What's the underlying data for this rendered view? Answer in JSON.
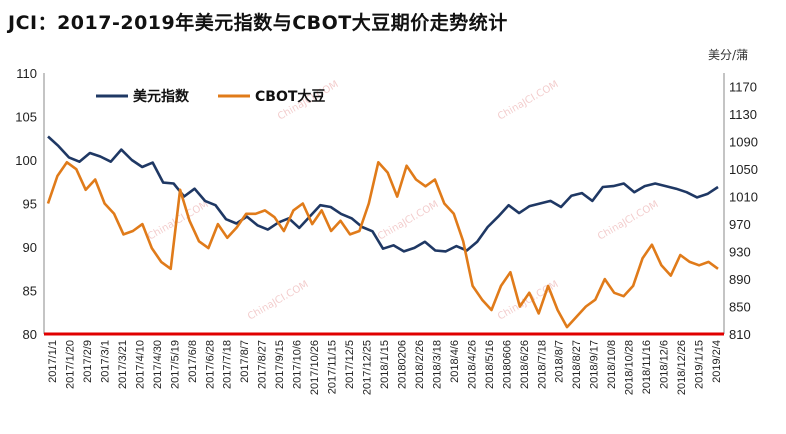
{
  "title": "JCI：2017-2019年美元指数与CBOT大豆期价走势统计",
  "right_unit": "美分/蒲",
  "chart_data": {
    "type": "line",
    "title": "JCI：2017-2019年美元指数与CBOT大豆期价走势统计",
    "left_axis": {
      "range": [
        80,
        110
      ],
      "ticks": [
        80,
        85,
        90,
        95,
        100,
        105,
        110
      ]
    },
    "right_axis": {
      "range": [
        810,
        1190
      ],
      "ticks": [
        810,
        850,
        890,
        930,
        970,
        1010,
        1050,
        1090,
        1130,
        1170
      ],
      "label": "美分/蒲"
    },
    "x_tick_labels": [
      "2017/1/1",
      "2017/1/20",
      "2017/2/9",
      "2017/3/1",
      "2017/3/21",
      "2017/4/10",
      "2017/4/30",
      "2017/5/19",
      "2017/6/8",
      "2017/6/28",
      "2017/7/18",
      "2017/8/7",
      "2017/8/27",
      "2017/9/15",
      "2017/10/6",
      "2017/10/26",
      "2017/11/15",
      "2017/12/5",
      "2017/12/25",
      "2018/1/15",
      "20180206",
      "2018/2/26",
      "2018/3/18",
      "2018/4/6",
      "2018/4/26",
      "2018/5/16",
      "20180606",
      "2018/6/26",
      "2018/7/18",
      "2018/8/7",
      "2018/8/27",
      "2018/9/17",
      "2018/10/8",
      "2018/10/28",
      "2018/11/16",
      "2018/12/6",
      "2018/12/26",
      "2019/1/15",
      "2019/2/4"
    ],
    "legend_placement": "top-left",
    "grid": false,
    "series": [
      {
        "name": "美元指数",
        "axis": "left",
        "color": "#1f3864",
        "values": [
          102.7,
          101.6,
          100.3,
          99.8,
          100.8,
          100.4,
          99.8,
          101.2,
          100.0,
          99.2,
          99.7,
          97.4,
          97.3,
          95.8,
          96.7,
          95.3,
          94.8,
          93.2,
          92.7,
          93.5,
          92.5,
          92.0,
          92.8,
          93.3,
          92.2,
          93.5,
          94.8,
          94.6,
          93.8,
          93.3,
          92.3,
          91.8,
          89.8,
          90.2,
          89.5,
          89.9,
          90.6,
          89.6,
          89.5,
          90.1,
          89.6,
          90.6,
          92.3,
          93.5,
          94.8,
          93.9,
          94.7,
          95.0,
          95.3,
          94.6,
          95.9,
          96.2,
          95.3,
          96.9,
          97.0,
          97.3,
          96.3,
          97.0,
          97.3,
          97.0,
          96.7,
          96.3,
          95.7,
          96.1,
          96.9
        ]
      },
      {
        "name": "CBOT大豆",
        "axis": "right",
        "color": "#e07b1a",
        "values": [
          1000,
          1040,
          1060,
          1050,
          1020,
          1035,
          1000,
          985,
          955,
          960,
          970,
          935,
          915,
          905,
          1020,
          975,
          945,
          935,
          970,
          950,
          965,
          985,
          985,
          990,
          980,
          960,
          990,
          1000,
          970,
          990,
          960,
          975,
          955,
          960,
          1000,
          1060,
          1045,
          1010,
          1055,
          1035,
          1025,
          1035,
          1000,
          985,
          945,
          880,
          860,
          845,
          880,
          900,
          850,
          870,
          840,
          880,
          845,
          820,
          835,
          850,
          860,
          890,
          870,
          865,
          880,
          920,
          940,
          910,
          895,
          925,
          915,
          910,
          915,
          905
        ]
      }
    ]
  }
}
